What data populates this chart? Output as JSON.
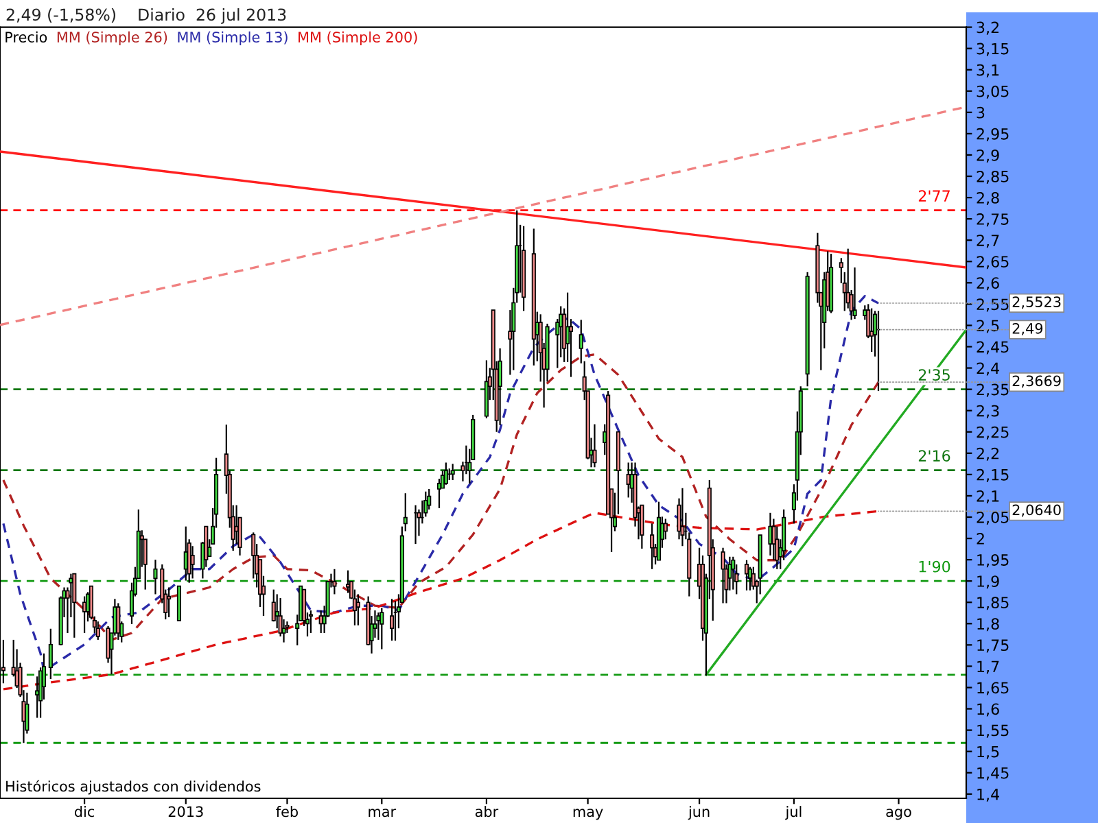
{
  "chart_data": {
    "type": "candlestick",
    "title": "2,49 (-1,58%)    Diario  26 jul 2013",
    "annotations": [
      "Históricos ajustados con dividendos",
      {
        "text": "2,5523",
        "x": "2013-07-26",
        "y": 2.5523
      },
      {
        "text": "2,49",
        "x": "2013-07-26",
        "y": 2.49
      },
      {
        "text": "2,3669",
        "x": "2013-07-26",
        "y": 2.3669
      },
      {
        "text": "2,0640",
        "x": "2013-07-26",
        "y": 2.064
      },
      {
        "text": "2'77",
        "x": "2013-08-21",
        "y": 2.77
      },
      {
        "text": "2'35",
        "x": "2013-08-21",
        "y": 2.35
      },
      {
        "text": "2'16",
        "x": "2013-08-21",
        "y": 2.16
      },
      {
        "text": "1'90",
        "x": "2013-08-21",
        "y": 1.9
      }
    ],
    "series": [
      {
        "name": "Precio",
        "color": "#000000",
        "x": [
          "2012-11-09",
          "2012-11-12",
          "2012-11-13",
          "2012-11-14",
          "2012-11-15",
          "2012-11-16",
          "2012-11-19",
          "2012-11-20",
          "2012-11-21",
          "2012-11-23",
          "2012-11-26",
          "2012-11-27",
          "2012-11-28",
          "2012-11-29",
          "2012-11-30",
          "2012-12-03",
          "2012-12-04",
          "2012-12-05",
          "2012-12-06",
          "2012-12-07",
          "2012-12-10",
          "2012-12-11",
          "2012-12-12",
          "2012-12-13",
          "2012-12-14",
          "2012-12-17",
          "2012-12-18",
          "2012-12-19",
          "2012-12-20",
          "2012-12-21",
          "2012-12-24",
          "2012-12-26",
          "2012-12-27",
          "2012-12-28",
          "2012-12-31",
          "2013-01-02",
          "2013-01-03",
          "2013-01-04",
          "2013-01-07",
          "2013-01-08",
          "2013-01-09",
          "2013-01-10",
          "2013-01-11",
          "2013-01-14",
          "2013-01-15",
          "2013-01-16",
          "2013-01-17",
          "2013-01-18",
          "2013-01-22",
          "2013-01-23",
          "2013-01-24",
          "2013-01-25",
          "2013-01-28",
          "2013-01-29",
          "2013-01-30",
          "2013-01-31",
          "2013-02-01",
          "2013-02-04",
          "2013-02-05",
          "2013-02-06",
          "2013-02-07",
          "2013-02-08",
          "2013-02-11",
          "2013-02-12",
          "2013-02-13",
          "2013-02-14",
          "2013-02-15",
          "2013-02-19",
          "2013-02-20",
          "2013-02-21",
          "2013-02-22",
          "2013-02-25",
          "2013-02-26",
          "2013-02-27",
          "2013-02-28",
          "2013-03-01",
          "2013-03-04",
          "2013-03-05",
          "2013-03-06",
          "2013-03-07",
          "2013-03-08",
          "2013-03-11",
          "2013-03-12",
          "2013-03-13",
          "2013-03-14",
          "2013-03-15",
          "2013-03-18",
          "2013-03-19",
          "2013-03-20",
          "2013-03-21",
          "2013-03-22",
          "2013-03-25",
          "2013-03-26",
          "2013-03-27",
          "2013-03-28",
          "2013-04-01",
          "2013-04-02",
          "2013-04-03",
          "2013-04-04",
          "2013-04-05",
          "2013-04-08",
          "2013-04-09",
          "2013-04-10",
          "2013-04-11",
          "2013-04-12",
          "2013-04-15",
          "2013-04-16",
          "2013-04-17",
          "2013-04-18",
          "2013-04-19",
          "2013-04-22",
          "2013-04-23",
          "2013-04-24",
          "2013-04-25",
          "2013-04-26",
          "2013-04-29",
          "2013-04-30",
          "2013-05-01",
          "2013-05-02",
          "2013-05-03",
          "2013-05-06",
          "2013-05-07",
          "2013-05-08",
          "2013-05-09",
          "2013-05-10",
          "2013-05-13",
          "2013-05-14",
          "2013-05-15",
          "2013-05-16",
          "2013-05-17",
          "2013-05-20",
          "2013-05-21",
          "2013-05-22",
          "2013-05-23",
          "2013-05-24",
          "2013-05-28",
          "2013-05-29",
          "2013-05-30",
          "2013-05-31",
          "2013-06-03",
          "2013-06-04",
          "2013-06-05",
          "2013-06-06",
          "2013-06-07",
          "2013-06-10",
          "2013-06-11",
          "2013-06-12",
          "2013-06-13",
          "2013-06-14",
          "2013-06-17",
          "2013-06-18",
          "2013-06-19",
          "2013-06-20",
          "2013-06-21",
          "2013-06-24",
          "2013-06-25",
          "2013-06-26",
          "2013-06-27",
          "2013-06-28",
          "2013-07-01",
          "2013-07-02",
          "2013-07-03",
          "2013-07-05",
          "2013-07-08",
          "2013-07-09",
          "2013-07-10",
          "2013-07-11",
          "2013-07-12",
          "2013-07-15",
          "2013-07-16",
          "2013-07-17",
          "2013-07-18",
          "2013-07-19",
          "2013-07-22",
          "2013-07-23",
          "2013-07-24",
          "2013-07-25",
          "2013-07-26"
        ],
        "ohlc": [
          [
            1.697,
            1.762,
            1.66,
            1.69
          ],
          [
            1.697,
            1.762,
            1.676,
            1.681
          ],
          [
            1.689,
            1.74,
            1.649,
            1.654
          ],
          [
            1.697,
            1.708,
            1.628,
            1.633
          ],
          [
            1.617,
            1.644,
            1.52,
            1.571
          ],
          [
            1.55,
            1.638,
            1.542,
            1.611
          ],
          [
            1.633,
            1.676,
            1.579,
            1.642
          ],
          [
            1.619,
            1.697,
            1.579,
            1.689
          ],
          [
            1.652,
            1.73,
            1.622,
            1.699
          ],
          [
            1.697,
            1.788,
            1.67,
            1.751
          ],
          [
            1.751,
            1.864,
            1.749,
            1.86
          ],
          [
            1.86,
            1.885,
            1.815,
            1.877
          ],
          [
            1.877,
            1.885,
            1.778,
            1.86
          ],
          [
            1.896,
            1.917,
            1.815,
            1.906
          ],
          [
            1.917,
            1.917,
            1.767,
            1.85
          ],
          [
            1.85,
            1.864,
            1.778,
            1.828
          ],
          [
            1.828,
            1.874,
            1.805,
            1.869
          ],
          [
            1.888,
            1.888,
            1.81,
            1.815
          ],
          [
            1.807,
            1.817,
            1.778,
            1.792
          ],
          [
            1.789,
            1.805,
            1.762,
            1.77
          ],
          [
            1.789,
            1.794,
            1.708,
            1.719
          ],
          [
            1.74,
            1.778,
            1.681,
            1.778
          ],
          [
            1.778,
            1.858,
            1.772,
            1.839
          ],
          [
            1.839,
            1.848,
            1.762,
            1.778
          ],
          [
            1.77,
            1.805,
            1.756,
            1.8
          ],
          [
            1.818,
            1.896,
            1.799,
            1.877
          ],
          [
            1.869,
            1.933,
            1.864,
            1.906
          ],
          [
            1.906,
            2.068,
            1.906,
            2.017
          ],
          [
            2.006,
            2.019,
            1.933,
            1.998
          ],
          [
            1.998,
            1.998,
            1.88,
            1.939
          ],
          [
            1.906,
            1.95,
            1.869,
            1.928
          ],
          [
            1.928,
            1.939,
            1.848,
            1.858
          ],
          [
            1.869,
            1.88,
            1.81,
            1.826
          ],
          [
            1.864,
            1.885,
            1.815,
            1.858
          ],
          [
            1.807,
            1.888,
            1.807,
            1.888
          ],
          [
            1.928,
            2.028,
            1.901,
            1.968
          ],
          [
            1.989,
            1.998,
            1.896,
            1.917
          ],
          [
            1.96,
            1.982,
            1.906,
            1.939
          ],
          [
            1.928,
            1.992,
            1.906,
            1.989
          ],
          [
            2.028,
            2.028,
            1.933,
            1.95
          ],
          [
            1.958,
            1.998,
            1.958,
            1.979
          ],
          [
            1.987,
            2.071,
            1.987,
            2.028
          ],
          [
            2.057,
            2.189,
            2.025,
            2.15
          ],
          [
            2.198,
            2.267,
            2.105,
            2.148
          ],
          [
            2.15,
            2.159,
            2.025,
            2.049
          ],
          [
            2.051,
            2.078,
            1.971,
            1.998
          ],
          [
            2.028,
            2.078,
            1.987,
            2.017
          ],
          [
            2.049,
            2.049,
            1.96,
            1.979
          ],
          [
            2.009,
            2.014,
            1.906,
            1.96
          ],
          [
            1.96,
            1.987,
            1.885,
            1.917
          ],
          [
            1.95,
            1.95,
            1.839,
            1.869
          ],
          [
            1.888,
            1.912,
            1.818,
            1.869
          ],
          [
            1.85,
            1.88,
            1.805,
            1.807
          ],
          [
            1.818,
            1.869,
            1.789,
            1.828
          ],
          [
            1.818,
            1.86,
            1.77,
            1.778
          ],
          [
            1.778,
            1.81,
            1.756,
            1.789
          ],
          [
            1.796,
            1.805,
            1.778,
            1.792
          ],
          [
            1.789,
            1.821,
            1.749,
            1.8
          ],
          [
            1.807,
            1.888,
            1.807,
            1.888
          ],
          [
            1.88,
            1.88,
            1.794,
            1.807
          ],
          [
            1.8,
            1.826,
            1.77,
            1.81
          ],
          [
            1.821,
            1.831,
            1.778,
            1.818
          ],
          [
            1.818,
            1.831,
            1.778,
            1.8
          ],
          [
            1.8,
            1.842,
            1.778,
            1.818
          ],
          [
            1.818,
            1.899,
            1.815,
            1.899
          ],
          [
            1.899,
            1.917,
            1.885,
            1.899
          ],
          [
            1.899,
            1.928,
            1.869,
            1.888
          ],
          [
            1.892,
            1.925,
            1.872,
            1.886
          ],
          [
            1.899,
            1.899,
            1.858,
            1.86
          ],
          [
            1.858,
            1.88,
            1.796,
            1.831
          ],
          [
            1.85,
            1.869,
            1.796,
            1.839
          ],
          [
            1.85,
            1.864,
            1.749,
            1.751
          ],
          [
            1.76,
            1.818,
            1.73,
            1.799
          ],
          [
            1.789,
            1.831,
            1.767,
            1.799
          ],
          [
            1.807,
            1.826,
            1.762,
            1.818
          ],
          [
            1.799,
            1.837,
            1.74,
            1.826
          ],
          [
            1.818,
            1.858,
            1.76,
            1.789
          ],
          [
            1.826,
            1.853,
            1.76,
            1.826
          ],
          [
            1.828,
            1.869,
            1.789,
            1.839
          ],
          [
            1.85,
            2.028,
            1.848,
            2.006
          ],
          [
            2.035,
            2.106,
            2.017,
            2.049
          ],
          [
            2.06,
            2.078,
            1.987,
            2.06
          ],
          [
            2.06,
            2.068,
            2.006,
            2.049
          ],
          [
            2.049,
            2.089,
            2.035,
            2.049
          ],
          [
            2.06,
            2.11,
            2.051,
            2.089
          ],
          [
            2.078,
            2.116,
            2.068,
            2.099
          ],
          [
            2.116,
            2.14,
            2.071,
            2.129
          ],
          [
            2.118,
            2.159,
            2.118,
            2.148
          ],
          [
            2.129,
            2.178,
            2.126,
            2.159
          ],
          [
            2.151,
            2.164,
            2.137,
            2.151
          ],
          [
            2.151,
            2.175,
            2.137,
            2.159
          ],
          [
            2.17,
            2.18,
            2.134,
            2.159
          ],
          [
            2.178,
            2.218,
            2.151,
            2.178
          ],
          [
            2.159,
            2.21,
            2.129,
            2.178
          ],
          [
            2.185,
            2.29,
            2.185,
            2.279
          ],
          [
            2.287,
            2.418,
            2.282,
            2.368
          ],
          [
            2.379,
            2.4,
            2.325,
            2.357
          ],
          [
            2.536,
            2.536,
            2.325,
            2.397
          ],
          [
            2.397,
            2.416,
            2.25,
            2.277
          ],
          [
            2.357,
            2.446,
            2.266,
            2.416
          ],
          [
            2.486,
            2.536,
            2.384,
            2.468
          ],
          [
            2.486,
            2.588,
            2.395,
            2.553
          ],
          [
            2.577,
            2.77,
            2.553,
            2.687
          ],
          [
            2.687,
            2.736,
            2.577,
            2.687
          ],
          [
            2.676,
            2.733,
            2.534,
            2.566
          ],
          [
            2.668,
            2.727,
            2.406,
            2.468
          ],
          [
            2.478,
            2.532,
            2.416,
            2.507
          ],
          [
            2.507,
            2.526,
            2.368,
            2.436
          ],
          [
            2.446,
            2.459,
            2.307,
            2.397
          ],
          [
            2.397,
            2.504,
            2.368,
            2.497
          ],
          [
            2.478,
            2.515,
            2.4,
            2.507
          ],
          [
            2.497,
            2.545,
            2.425,
            2.526
          ],
          [
            2.526,
            2.54,
            2.414,
            2.446
          ],
          [
            2.457,
            2.577,
            2.414,
            2.497
          ],
          [
            2.497,
            2.515,
            2.379,
            2.486
          ],
          [
            2.446,
            2.513,
            2.411,
            2.478
          ],
          [
            2.379,
            2.416,
            2.325,
            2.346
          ],
          [
            2.346,
            2.346,
            2.186,
            2.189
          ],
          [
            2.196,
            2.236,
            2.167,
            2.207
          ],
          [
            2.207,
            2.268,
            2.167,
            2.178
          ],
          [
            2.225,
            2.268,
            2.196,
            2.25
          ],
          [
            2.336,
            2.346,
            2.057,
            2.057
          ],
          [
            2.116,
            2.116,
            1.968,
            2.049
          ],
          [
            2.028,
            2.107,
            2.017,
            2.049
          ],
          [
            2.25,
            2.25,
            2.057,
            2.159
          ],
          [
            2.15,
            2.178,
            2.096,
            2.127
          ],
          [
            2.118,
            2.178,
            2.084,
            2.15
          ],
          [
            2.15,
            2.178,
            2.028,
            2.049
          ],
          [
            2.071,
            2.075,
            1.998,
            2.06
          ],
          [
            2.078,
            2.078,
            1.976,
            2.008
          ],
          [
            2.008,
            2.035,
            1.928,
            1.978
          ],
          [
            1.978,
            1.987,
            1.939,
            1.957
          ],
          [
            1.949,
            2.086,
            1.949,
            2.049
          ],
          [
            1.998,
            2.051,
            1.978,
            2.035
          ],
          [
            2.035,
            2.046,
            1.998,
            2.017
          ],
          [
            2.078,
            2.094,
            1.998,
            2.017
          ],
          [
            2.028,
            2.118,
            1.982,
            2.008
          ],
          [
            2.017,
            2.06,
            1.998,
            2.017
          ],
          [
            1.998,
            2.014,
            1.864,
            1.907
          ],
          [
            1.939,
            1.978,
            1.858,
            1.888
          ],
          [
            1.939,
            1.96,
            1.76,
            1.789
          ],
          [
            1.778,
            1.917,
            1.678,
            1.907
          ],
          [
            2.118,
            2.137,
            1.858,
            1.96
          ],
          [
            1.978,
            1.998,
            1.807,
            1.88
          ],
          [
            1.968,
            1.978,
            1.848,
            1.928
          ],
          [
            1.928,
            1.939,
            1.848,
            1.88
          ],
          [
            1.907,
            1.957,
            1.878,
            1.939
          ],
          [
            1.928,
            1.957,
            1.88,
            1.949
          ],
          [
            1.917,
            1.939,
            1.869,
            1.899
          ],
          [
            1.939,
            1.949,
            1.878,
            1.917
          ],
          [
            1.907,
            1.933,
            1.878,
            1.928
          ],
          [
            1.917,
            1.933,
            1.88,
            1.888
          ],
          [
            1.899,
            1.903,
            1.848,
            1.888
          ],
          [
            1.907,
            2.008,
            1.869,
            2.008
          ],
          [
            1.987,
            2.06,
            1.96,
            2.028
          ],
          [
            2.028,
            2.046,
            1.949,
            1.987
          ],
          [
            1.998,
            2.028,
            1.928,
            1.949
          ],
          [
            1.957,
            1.998,
            1.928,
            1.978
          ],
          [
            1.971,
            2.068,
            1.949,
            2.049
          ],
          [
            2.068,
            2.127,
            2.035,
            2.107
          ],
          [
            2.137,
            2.298,
            2.089,
            2.25
          ],
          [
            2.25,
            2.357,
            2.196,
            2.346
          ],
          [
            2.386,
            2.625,
            2.357,
            2.615
          ],
          [
            2.687,
            2.717,
            2.553,
            2.577
          ],
          [
            2.577,
            2.577,
            2.395,
            2.545
          ],
          [
            2.507,
            2.625,
            2.446,
            2.607
          ],
          [
            2.625,
            2.674,
            2.534,
            2.545
          ],
          [
            2.534,
            2.668,
            2.529,
            2.636
          ],
          [
            2.647,
            2.658,
            2.599,
            2.636
          ],
          [
            2.599,
            2.625,
            2.534,
            2.577
          ],
          [
            2.577,
            2.68,
            2.54,
            2.553
          ],
          [
            2.572,
            2.583,
            2.513,
            2.534
          ],
          [
            2.523,
            2.636,
            2.515,
            2.536
          ],
          [
            2.523,
            2.547,
            2.513,
            2.536
          ],
          [
            2.536,
            2.55,
            2.47,
            2.475
          ],
          [
            2.486,
            2.54,
            2.438,
            2.475
          ],
          [
            2.478,
            2.534,
            2.427,
            2.526
          ],
          [
            2.49,
            2.534,
            2.346,
            2.49
          ]
        ]
      },
      {
        "name": "MM (Simple 26)",
        "type": "line",
        "color": "#b22222",
        "line_style": "dashed",
        "x": [
          "2012-11-09",
          "2012-11-15",
          "2012-11-23",
          "2012-12-05",
          "2012-12-11",
          "2012-12-17",
          "2012-12-26",
          "2013-01-09",
          "2013-01-16",
          "2013-01-22",
          "2013-01-28",
          "2013-02-01",
          "2013-02-08",
          "2013-02-15",
          "2013-02-21",
          "2013-02-27",
          "2013-03-06",
          "2013-03-12",
          "2013-03-20",
          "2013-03-28",
          "2013-04-05",
          "2013-04-10",
          "2013-04-16",
          "2013-04-23",
          "2013-04-29",
          "2013-05-03",
          "2013-05-10",
          "2013-05-22",
          "2013-05-29",
          "2013-06-05",
          "2013-06-12",
          "2013-06-20",
          "2013-06-27",
          "2013-07-02",
          "2013-07-10",
          "2013-07-18",
          "2013-07-26"
        ],
        "values": [
          2.137,
          2.03,
          1.906,
          1.818,
          1.762,
          1.778,
          1.858,
          1.885,
          1.928,
          1.955,
          1.96,
          1.928,
          1.925,
          1.896,
          1.869,
          1.842,
          1.837,
          1.896,
          1.933,
          2.009,
          2.116,
          2.244,
          2.341,
          2.395,
          2.427,
          2.432,
          2.384,
          2.234,
          2.191,
          2.051,
          1.998,
          1.949,
          1.949,
          2.009,
          2.127,
          2.266,
          2.367
        ]
      },
      {
        "name": "MM (Simple 13)",
        "type": "line",
        "color": "#2a2aa8",
        "line_style": "dashed",
        "x": [
          "2012-11-09",
          "2012-11-14",
          "2012-11-20",
          "2012-11-21",
          "2012-12-03",
          "2012-12-11",
          "2012-12-19",
          "2012-12-28",
          "2013-01-04",
          "2013-01-09",
          "2013-01-16",
          "2013-01-22",
          "2013-01-24",
          "2013-01-30",
          "2013-02-05",
          "2013-02-08",
          "2013-02-15",
          "2013-02-22",
          "2013-03-01",
          "2013-03-06",
          "2013-03-12",
          "2013-03-19",
          "2013-03-25",
          "2013-04-02",
          "2013-04-05",
          "2013-04-08",
          "2013-04-15",
          "2013-04-19",
          "2013-04-25",
          "2013-04-29",
          "2013-05-03",
          "2013-05-10",
          "2013-05-16",
          "2013-05-22",
          "2013-05-29",
          "2013-06-03",
          "2013-06-10",
          "2013-06-14",
          "2013-06-20",
          "2013-06-25",
          "2013-07-01",
          "2013-07-05",
          "2013-07-09",
          "2013-07-12",
          "2013-07-18",
          "2013-07-22",
          "2013-07-26"
        ],
        "values": [
          2.035,
          1.869,
          1.73,
          1.689,
          1.751,
          1.815,
          1.826,
          1.88,
          1.928,
          1.928,
          1.982,
          2.009,
          2.003,
          1.944,
          1.869,
          1.831,
          1.826,
          1.842,
          1.842,
          1.831,
          1.912,
          2.009,
          2.105,
          2.191,
          2.255,
          2.341,
          2.448,
          2.48,
          2.518,
          2.491,
          2.384,
          2.255,
          2.148,
          2.078,
          2.041,
          1.987,
          1.955,
          1.917,
          1.901,
          1.933,
          1.976,
          2.105,
          2.137,
          2.33,
          2.534,
          2.569,
          2.552
        ]
      },
      {
        "name": "MM (Simple 200)",
        "type": "line",
        "color": "#dd1111",
        "line_style": "dashed",
        "x": [
          "2012-11-09",
          "2012-11-21",
          "2012-12-11",
          "2012-12-28",
          "2013-01-11",
          "2013-01-30",
          "2013-02-15",
          "2013-02-27",
          "2013-03-12",
          "2013-03-25",
          "2013-04-05",
          "2013-04-16",
          "2013-04-29",
          "2013-05-03",
          "2013-05-24",
          "2013-06-03",
          "2013-06-20",
          "2013-07-10",
          "2013-07-26"
        ],
        "values": [
          1.646,
          1.66,
          1.681,
          1.719,
          1.751,
          1.783,
          1.826,
          1.837,
          1.874,
          1.906,
          1.949,
          1.998,
          2.046,
          2.06,
          2.032,
          2.025,
          2.021,
          2.051,
          2.064
        ]
      },
      {
        "type": "line",
        "color": "#ff2020",
        "line_style": "solid",
        "x": [
          "2012-11-08",
          "2013-08-21"
        ],
        "values": [
          2.908,
          2.636
        ]
      },
      {
        "type": "line",
        "color": "#f08080",
        "line_style": "dashed",
        "x": [
          "2012-11-08",
          "2013-08-21"
        ],
        "values": [
          2.501,
          3.013
        ]
      },
      {
        "type": "line",
        "color": "#22aa22",
        "line_style": "solid",
        "x": [
          "2013-06-05",
          "2013-08-21"
        ],
        "values": [
          1.68,
          2.49
        ]
      }
    ],
    "ref_lines": [
      {
        "axis": "y",
        "value": 2.77,
        "color": "#ff0000",
        "line_style": "dashed"
      },
      {
        "axis": "y",
        "value": 2.35,
        "color": "#117711",
        "line_style": "dashed"
      },
      {
        "axis": "y",
        "value": 2.16,
        "color": "#117711",
        "line_style": "dashed"
      },
      {
        "axis": "y",
        "value": 1.9,
        "color": "#119911",
        "line_style": "dashed"
      },
      {
        "axis": "y",
        "value": 1.68,
        "color": "#119911",
        "line_style": "dashed"
      },
      {
        "axis": "y",
        "value": 1.52,
        "color": "#119911",
        "line_style": "dashed"
      }
    ],
    "xlim": [
      "2012-11-08",
      "2013-08-21"
    ],
    "xticks": [
      {
        "value": "2012-12-03",
        "label": "dic"
      },
      {
        "value": "2013-01-02",
        "label": "2013"
      },
      {
        "value": "2013-02-01",
        "label": "feb"
      },
      {
        "value": "2013-03-01",
        "label": "mar"
      },
      {
        "value": "2013-04-01",
        "label": "abr"
      },
      {
        "value": "2013-05-01",
        "label": "may"
      },
      {
        "value": "2013-06-03",
        "label": "jun"
      },
      {
        "value": "2013-07-01",
        "label": "jul"
      },
      {
        "value": "2013-08-01",
        "label": "ago"
      }
    ],
    "ylim": [
      1.39,
      3.2
    ],
    "yticks": [
      {
        "value": 1.4,
        "label": "1,4"
      },
      {
        "value": 1.45,
        "label": "1,45"
      },
      {
        "value": 1.5,
        "label": "1,5"
      },
      {
        "value": 1.55,
        "label": "1,55"
      },
      {
        "value": 1.6,
        "label": "1,6"
      },
      {
        "value": 1.65,
        "label": "1,65"
      },
      {
        "value": 1.7,
        "label": "1,7"
      },
      {
        "value": 1.75,
        "label": "1,75"
      },
      {
        "value": 1.8,
        "label": "1,8"
      },
      {
        "value": 1.85,
        "label": "1,85"
      },
      {
        "value": 1.9,
        "label": "1,9"
      },
      {
        "value": 1.95,
        "label": "1,95"
      },
      {
        "value": 2,
        "label": "2"
      },
      {
        "value": 2.05,
        "label": "2,05"
      },
      {
        "value": 2.1,
        "label": "2,1"
      },
      {
        "value": 2.15,
        "label": "2,15"
      },
      {
        "value": 2.2,
        "label": "2,2"
      },
      {
        "value": 2.25,
        "label": "2,25"
      },
      {
        "value": 2.3,
        "label": "2,3"
      },
      {
        "value": 2.35,
        "label": "2,35"
      },
      {
        "value": 2.4,
        "label": "2,4"
      },
      {
        "value": 2.45,
        "label": "2,45"
      },
      {
        "value": 2.5,
        "label": "2,5"
      },
      {
        "value": 2.55,
        "label": "2,55"
      },
      {
        "value": 2.6,
        "label": "2,6"
      },
      {
        "value": 2.65,
        "label": "2,65"
      },
      {
        "value": 2.7,
        "label": "2,7"
      },
      {
        "value": 2.75,
        "label": "2,75"
      },
      {
        "value": 2.8,
        "label": "2,8"
      },
      {
        "value": 2.85,
        "label": "2,85"
      },
      {
        "value": 2.9,
        "label": "2,9"
      },
      {
        "value": 2.95,
        "label": "2,95"
      },
      {
        "value": 3,
        "label": "3"
      },
      {
        "value": 3.05,
        "label": "3,05"
      },
      {
        "value": 3.1,
        "label": "3,1"
      },
      {
        "value": 3.15,
        "label": "3,15"
      },
      {
        "value": 3.2,
        "label": "3,2"
      }
    ],
    "legend": "top left",
    "grid": false
  }
}
